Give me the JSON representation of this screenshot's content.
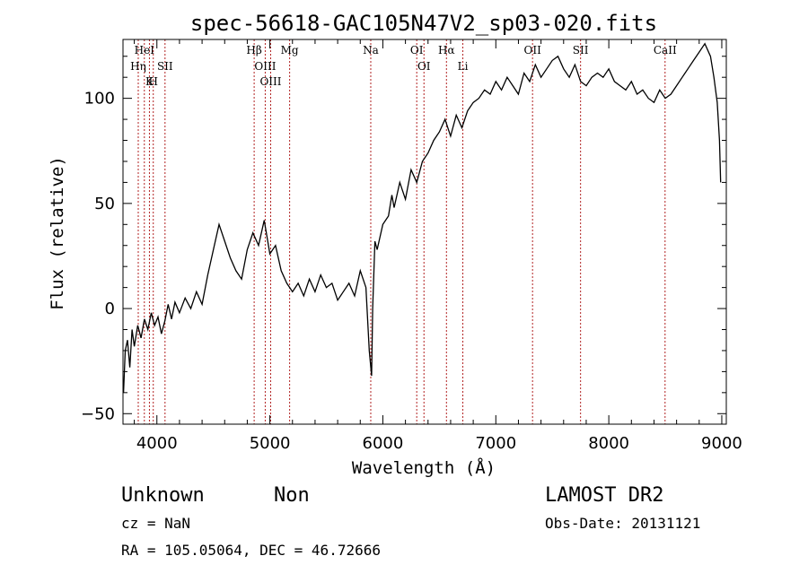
{
  "chart_data": {
    "type": "line",
    "title": "spec-56618-GAC105N47V2_sp03-020.fits",
    "xlabel": "Wavelength (Å)",
    "ylabel": "Flux (relative)",
    "xlim": [
      3700,
      9040
    ],
    "ylim": [
      -55,
      128
    ],
    "xticks": [
      4000,
      5000,
      6000,
      7000,
      8000,
      9000
    ],
    "xtick_labels": [
      "4000",
      "5000",
      "6000",
      "7000",
      "8000",
      "9000"
    ],
    "yticks": [
      -50,
      0,
      50,
      100
    ],
    "ytick_labels": [
      "−50",
      "0",
      "50",
      "100"
    ],
    "series": [
      {
        "color": "#000000",
        "x": [
          3705,
          3720,
          3740,
          3760,
          3780,
          3800,
          3830,
          3860,
          3890,
          3920,
          3950,
          3980,
          4010,
          4040,
          4070,
          4100,
          4130,
          4160,
          4200,
          4250,
          4300,
          4350,
          4400,
          4450,
          4500,
          4550,
          4600,
          4650,
          4700,
          4750,
          4800,
          4850,
          4900,
          4950,
          5000,
          5050,
          5100,
          5150,
          5200,
          5250,
          5300,
          5350,
          5400,
          5450,
          5500,
          5550,
          5600,
          5650,
          5700,
          5750,
          5800,
          5850,
          5880,
          5900,
          5910,
          5930,
          5950,
          6000,
          6050,
          6080,
          6100,
          6150,
          6200,
          6250,
          6300,
          6350,
          6400,
          6450,
          6500,
          6550,
          6600,
          6650,
          6700,
          6750,
          6800,
          6850,
          6900,
          6950,
          7000,
          7050,
          7100,
          7150,
          7200,
          7250,
          7300,
          7350,
          7400,
          7450,
          7500,
          7550,
          7600,
          7650,
          7700,
          7750,
          7800,
          7850,
          7900,
          7950,
          8000,
          8050,
          8100,
          8150,
          8200,
          8250,
          8300,
          8350,
          8400,
          8450,
          8500,
          8550,
          8600,
          8650,
          8700,
          8750,
          8800,
          8850,
          8900,
          8930,
          8960,
          8980,
          8990
        ],
        "y": [
          -40,
          -20,
          -15,
          -28,
          -10,
          -18,
          -8,
          -14,
          -5,
          -10,
          -2,
          -8,
          -4,
          -12,
          -6,
          2,
          -5,
          3,
          -2,
          5,
          0,
          8,
          2,
          16,
          28,
          40,
          32,
          24,
          18,
          14,
          28,
          36,
          30,
          42,
          26,
          30,
          18,
          12,
          8,
          12,
          6,
          14,
          8,
          16,
          10,
          12,
          4,
          8,
          12,
          6,
          18,
          10,
          -20,
          -32,
          0,
          32,
          28,
          40,
          44,
          54,
          48,
          60,
          52,
          66,
          60,
          70,
          74,
          80,
          84,
          90,
          82,
          92,
          86,
          94,
          98,
          100,
          104,
          102,
          108,
          104,
          110,
          106,
          102,
          112,
          108,
          116,
          110,
          114,
          118,
          120,
          114,
          110,
          116,
          108,
          106,
          110,
          112,
          110,
          114,
          108,
          106,
          104,
          108,
          102,
          104,
          100,
          98,
          104,
          100,
          102,
          106,
          110,
          114,
          118,
          122,
          126,
          120,
          110,
          98,
          80,
          60
        ]
      }
    ],
    "reference_lines": [
      {
        "label": "HeI",
        "wavelength": 3889
      },
      {
        "label": "Hη",
        "wavelength": 3835
      },
      {
        "label": "H",
        "wavelength": 3968
      },
      {
        "label": "K",
        "wavelength": 3934
      },
      {
        "label": "SII",
        "wavelength": 4072
      },
      {
        "label": "Hβ",
        "wavelength": 4861
      },
      {
        "label": "OIII",
        "wavelength": 4959
      },
      {
        "label": "OIII",
        "wavelength": 5007
      },
      {
        "label": "Mg",
        "wavelength": 5175
      },
      {
        "label": "Na",
        "wavelength": 5893
      },
      {
        "label": "OI",
        "wavelength": 6300
      },
      {
        "label": "OI",
        "wavelength": 6364
      },
      {
        "label": "Hα",
        "wavelength": 6563
      },
      {
        "label": "Li",
        "wavelength": 6708
      },
      {
        "label": "OII",
        "wavelength": 7325
      },
      {
        "label": "SII",
        "wavelength": 7750
      },
      {
        "label": "CaII",
        "wavelength": 8498
      }
    ],
    "grid": false,
    "line_color": "#000000",
    "reference_line_color": "#b22222"
  },
  "info": {
    "class": "Unknown",
    "subclass": "Non",
    "survey": "LAMOST DR2",
    "cz": "cz = NaN",
    "obs_date": "Obs-Date: 20131121",
    "coords": "RA = 105.05064, DEC =  46.72666"
  }
}
